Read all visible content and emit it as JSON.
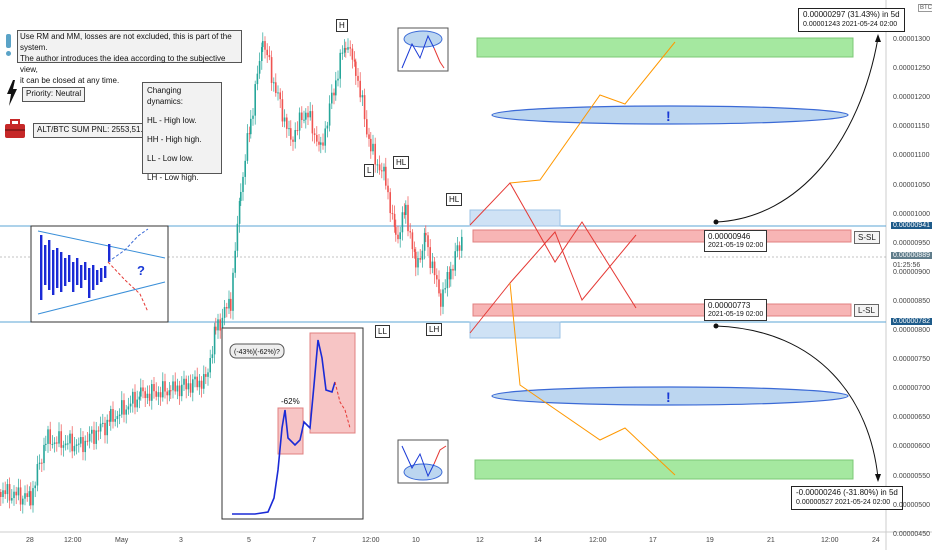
{
  "note_lines": [
    "Use RM and MM, losses are not excluded, this is part of the system.",
    "The author introduces the idea according to the subjective view,",
    "it can be closed at any time."
  ],
  "priority": "Priority: Neutral",
  "pnl": "ALT/BTC SUM PNL: 2553,51.",
  "dynamics": {
    "title": "Changing dynamics:",
    "items": [
      "HL - High low.",
      "HH - High high.",
      "LL - Low low.",
      "LH - Low high."
    ]
  },
  "pattern_tags": {
    "h": "H",
    "l": "L",
    "hl1": "HL",
    "hl2": "HL",
    "ll": "LL",
    "lh": "LH"
  },
  "question_mark": "?",
  "mini_labels": {
    "pct62": "-62%",
    "pct_pair": "(-43%)(-62%)?"
  },
  "exclamation": "!",
  "levels": {
    "short_price": "0.00000946",
    "short_date": "2021-05-19 02:00",
    "short_tag": "S-SL",
    "long_price": "0.00000773",
    "long_date": "2021-05-19 02:00",
    "long_tag": "L-SL"
  },
  "callouts": {
    "up_line1": "0.00000297 (31.43%) in 5d",
    "up_line2": "0.00001243    2021-05-24  02:00",
    "down_line1": "-0.00000246 (-31.80%) in 5d",
    "down_line2": "0.00000527    2021-05-24  02:00"
  },
  "price_scale": [
    "0.00001300",
    "0.00001250",
    "0.00001200",
    "0.00001150",
    "0.00001100",
    "0.00001050",
    "0.00001000",
    "0.00000950",
    "0.00000900",
    "0.00000850",
    "0.00000800",
    "0.00000750",
    "0.00000700",
    "0.00000650",
    "0.00000600",
    "0.00000550",
    "0.00000500",
    "0.00000450"
  ],
  "price_markers": {
    "top": "0.00000941",
    "current": "0.00000889",
    "countdown": "01:25:56",
    "bottom": "0.00000782"
  },
  "time_labels": [
    "28",
    "12:00",
    "May",
    "3",
    "5",
    "7",
    "12:00",
    "10",
    "12",
    "14",
    "12:00",
    "17",
    "19",
    "21",
    "12:00",
    "24"
  ],
  "currency": "BTC",
  "colors": {
    "up": "#26a69a",
    "down": "#ef5350",
    "forecast_red": "#e53935",
    "forecast_orange": "#ff9800",
    "level_line": "#2196f3"
  }
}
